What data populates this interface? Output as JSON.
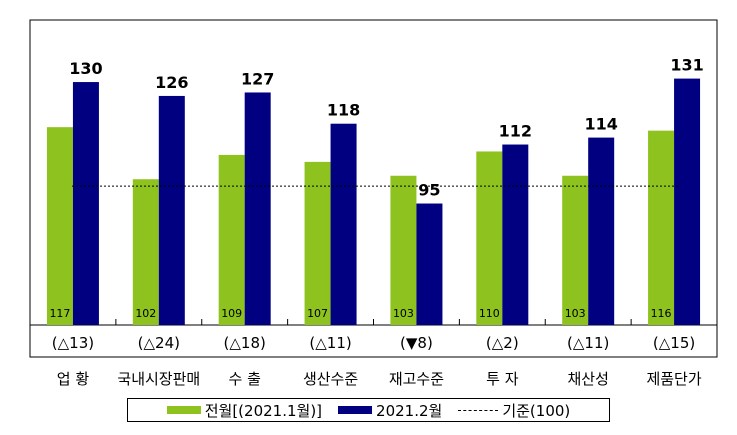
{
  "chart_data": {
    "type": "bar",
    "categories": [
      "업 황",
      "국내시장판매",
      "수 출",
      "생산수준",
      "재고수준",
      "투 자",
      "채산성",
      "제품단가"
    ],
    "changes": [
      "(△13)",
      "(△24)",
      "(△18)",
      "(△11)",
      "(▼8)",
      "(△2)",
      "(△11)",
      "(△15)"
    ],
    "series": [
      {
        "name": "전월[(2021.1월)]",
        "values": [
          117,
          102,
          109,
          107,
          103,
          110,
          103,
          116
        ],
        "color": "#8dc21f"
      },
      {
        "name": "2021.2월",
        "values": [
          130,
          126,
          127,
          118,
          95,
          112,
          114,
          131
        ],
        "color": "#000080"
      }
    ],
    "reference": {
      "name": "기준(100)",
      "value": 100
    },
    "ylim": [
      60,
      145
    ],
    "grid": false
  },
  "legend": {
    "prev_label": "전월[(2021.1월)]",
    "curr_label": "2021.2월",
    "ref_label": "기준(100)"
  }
}
